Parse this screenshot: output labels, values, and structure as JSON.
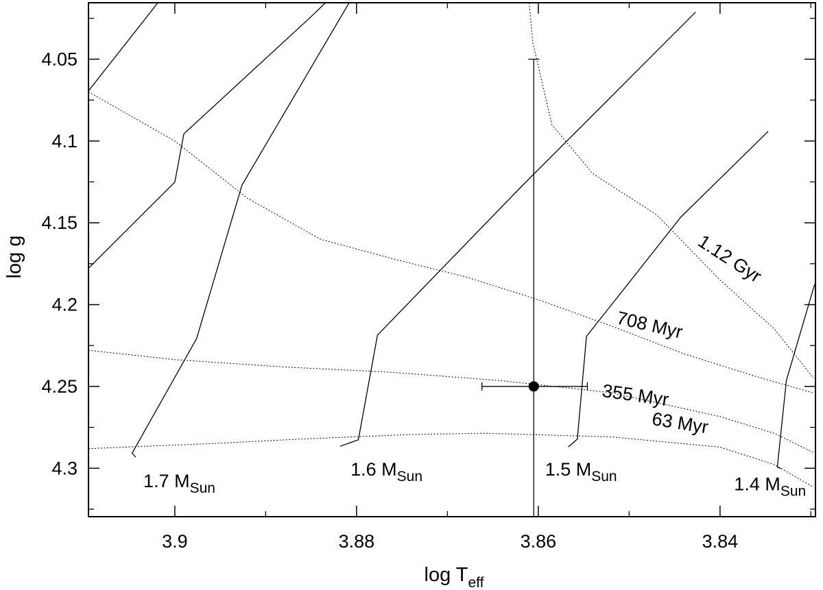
{
  "chart_data": {
    "type": "line",
    "xlabel": "log T",
    "xlabel_sub": "eff",
    "ylabel": "log g",
    "xlim": [
      3.9095,
      3.8295
    ],
    "ylim": [
      4.3296,
      4.0155
    ],
    "x_reversed": true,
    "y_reversed": true,
    "grid": false,
    "xticks": [
      3.9,
      3.88,
      3.86,
      3.84
    ],
    "xtick_labels": [
      "3.9",
      "3.88",
      "3.86",
      "3.84"
    ],
    "yticks": [
      4.05,
      4.1,
      4.15,
      4.2,
      4.25,
      4.3
    ],
    "ytick_labels": [
      "4.05",
      "4.1",
      "4.15",
      "4.2",
      "4.25",
      "4.3"
    ],
    "tracks": [
      {
        "label": "1.7 M",
        "label_sub": "Sun",
        "label_at": [
          3.8995,
          4.3116
        ],
        "x": [
          3.9043,
          3.9047,
          3.8976,
          3.8926,
          3.8766,
          3.8505
        ],
        "y": [
          4.2932,
          4.2908,
          4.2207,
          4.1269,
          3.9757,
          3.7813
        ]
      },
      {
        "label": "1.6 M",
        "label_sub": "Sun",
        "label_at": [
          3.8767,
          4.3045
        ],
        "x": [
          3.8818,
          3.8798,
          3.8777,
          3.8617,
          3.8427
        ],
        "y": [
          4.2866,
          4.2826,
          4.2186,
          4.1269,
          4.0213
        ]
      },
      {
        "label": "1.5 M",
        "label_sub": "Sun",
        "label_at": [
          3.8553,
          4.3045
        ],
        "x": [
          3.8567,
          3.8557,
          3.8547,
          3.8443,
          3.8347
        ],
        "y": [
          4.287,
          4.2822,
          4.2194,
          4.1464,
          4.0941
        ]
      },
      {
        "label": "1.4 M",
        "label_sub": "Sun",
        "label_at": [
          3.8345,
          4.3134
        ],
        "x": [
          3.8333,
          3.8337,
          3.8327,
          3.8296
        ],
        "y": [
          4.3002,
          4.2993,
          4.2463,
          4.1877
        ]
      },
      {
        "label": "",
        "label_sub": "",
        "x": [
          3.9095,
          3.9,
          3.899,
          3.885,
          3.874
        ],
        "y": [
          4.1778,
          4.1251,
          4.0956,
          4.024,
          3.965
        ]
      },
      {
        "label": "",
        "label_sub": "",
        "x": [
          3.9095,
          3.8855
        ],
        "y": [
          4.0694,
          3.9
        ]
      }
    ],
    "isochrones": [
      {
        "label": "63 Myr",
        "label_at": [
          3.8445,
          4.2761
        ],
        "label_angle": 9,
        "x": [
          3.9095,
          3.8954,
          3.886,
          3.874,
          3.866,
          3.852,
          3.84,
          3.834,
          3.8297
        ],
        "y": [
          4.288,
          4.2848,
          4.2821,
          4.2794,
          4.2786,
          4.2808,
          4.2871,
          4.2978,
          4.3116
        ]
      },
      {
        "label": "355 Myr",
        "label_at": [
          3.8494,
          4.2591
        ],
        "label_angle": 8,
        "x": [
          3.9095,
          3.9,
          3.888,
          3.876,
          3.864,
          3.852,
          3.84,
          3.834,
          3.8297
        ],
        "y": [
          4.2279,
          4.2336,
          4.2381,
          4.2414,
          4.2465,
          4.2538,
          4.2684,
          4.2787,
          4.2905
        ]
      },
      {
        "label": "708 Myr",
        "label_at": [
          3.8479,
          4.2161
        ],
        "label_angle": 13,
        "x": [
          3.9095,
          3.9,
          3.892,
          3.884,
          3.876,
          3.868,
          3.86,
          3.852,
          3.844,
          3.836,
          3.8297
        ],
        "y": [
          4.07,
          4.1,
          4.135,
          4.16,
          4.172,
          4.183,
          4.197,
          4.213,
          4.23,
          4.244,
          4.254
        ]
      },
      {
        "label": "1.12 Gyr",
        "label_at": [
          3.8393,
          4.1751
        ],
        "label_angle": 33,
        "x": [
          3.861,
          3.8606,
          3.8585,
          3.854,
          3.847,
          3.84,
          3.834,
          3.8297
        ],
        "y": [
          4.0155,
          4.04,
          4.09,
          4.12,
          4.145,
          4.185,
          4.215,
          4.245
        ]
      }
    ],
    "point": {
      "x": 3.8605,
      "y": 4.25,
      "xerr": [
        3.8662,
        3.8546
      ],
      "yerr": [
        4.3296,
        4.05
      ]
    }
  }
}
